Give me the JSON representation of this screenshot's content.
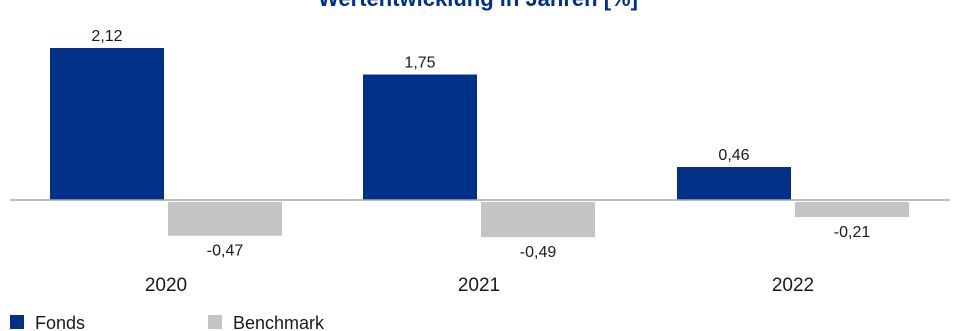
{
  "chart_data": {
    "type": "bar",
    "title": "Wertentwicklung in Jahren [%]",
    "categories": [
      "2020",
      "2021",
      "2022"
    ],
    "series": [
      {
        "name": "Fonds",
        "values": [
          2.12,
          1.75,
          0.46
        ],
        "labels": [
          "2,12",
          "1,75",
          "0,46"
        ],
        "color": "#003087"
      },
      {
        "name": "Benchmark",
        "values": [
          -0.47,
          -0.49,
          -0.21
        ],
        "labels": [
          "-0,47",
          "-0,49",
          "-0,21"
        ],
        "color": "#c4c4c4"
      }
    ],
    "legend_position": "bottom-left",
    "grid": false,
    "title_color": "#003087",
    "baseline_color": "#a6a6a6"
  }
}
